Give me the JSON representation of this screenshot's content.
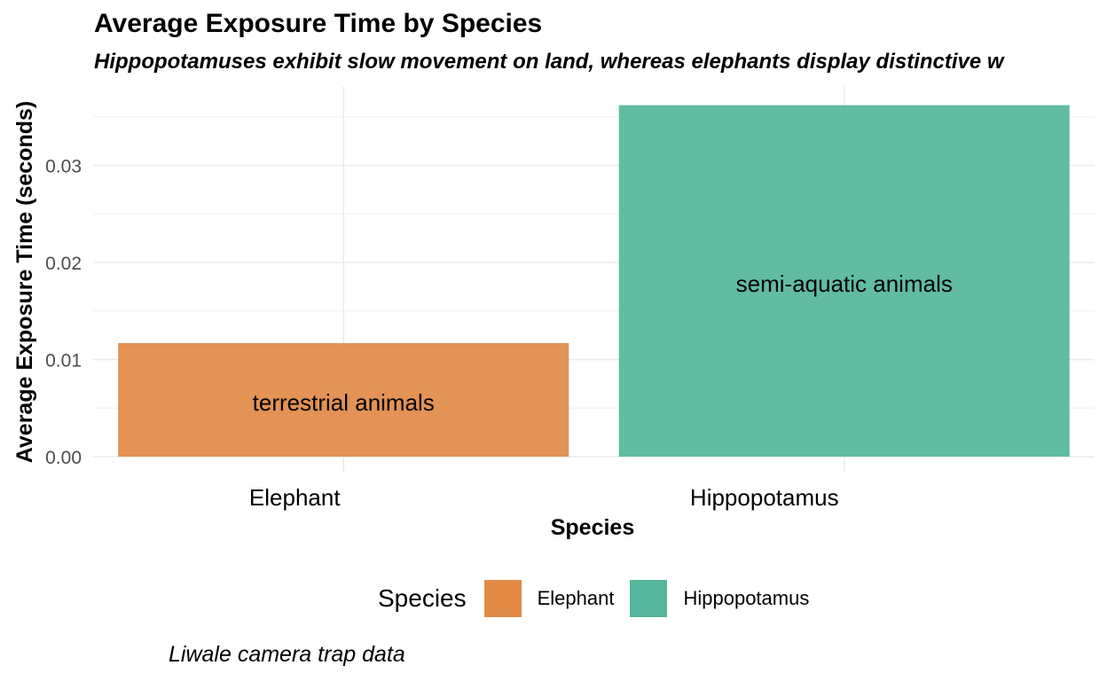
{
  "chart_data": {
    "type": "bar",
    "title": "Average Exposure Time by Species",
    "subtitle": "Hippopotamuses exhibit slow movement on land, whereas elephants display distinctive w",
    "xlabel": "Species",
    "ylabel": "Average Exposure Time (seconds)",
    "categories": [
      "Elephant",
      "Hippopotamus"
    ],
    "values": [
      0.0117,
      0.0362
    ],
    "bar_labels": [
      "terrestrial animals",
      "semi-aquatic animals"
    ],
    "colors": [
      "#e08a46",
      "#54b69a"
    ],
    "yticks": [
      0.0,
      0.01,
      0.02,
      0.03
    ],
    "ytick_labels": [
      "0.00",
      "0.01",
      "0.02",
      "0.03"
    ],
    "ylim": [
      0,
      0.0382
    ],
    "grid": true,
    "legend": {
      "title": "Species",
      "entries": [
        "Elephant",
        "Hippopotamus"
      ],
      "placement": "bottom"
    },
    "caption": "Liwale camera trap data"
  }
}
